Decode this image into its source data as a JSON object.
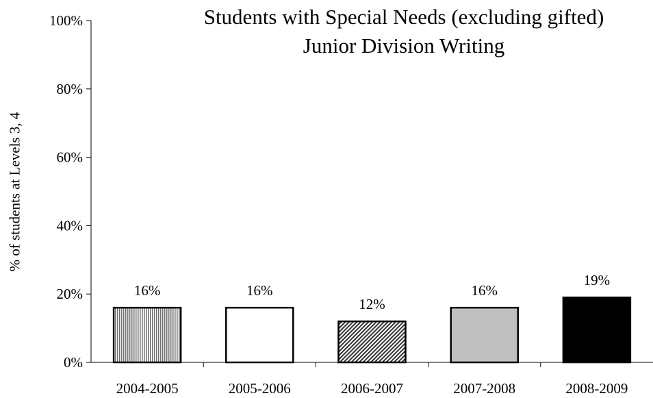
{
  "chart_data": {
    "type": "bar",
    "title": "Students with Special Needs (excluding gifted)",
    "subtitle": "Junior Division Writing",
    "xlabel": "",
    "ylabel": "% of students at Levels 3, 4",
    "categories": [
      "2004-2005",
      "2005-2006",
      "2006-2007",
      "2007-2008",
      "2008-2009"
    ],
    "values": [
      16,
      16,
      12,
      16,
      19
    ],
    "data_labels": [
      "16%",
      "16%",
      "12%",
      "16%",
      "19%"
    ],
    "bar_fills": [
      "vertical-stripes",
      "white",
      "diagonal-hatch",
      "light-gray",
      "black"
    ],
    "ylim": [
      0,
      100
    ],
    "yticks": [
      0,
      20,
      40,
      60,
      80,
      100
    ],
    "ytick_labels": [
      "0%",
      "20%",
      "40%",
      "60%",
      "80%",
      "100%"
    ],
    "grid": false,
    "legend": "none",
    "colors": {
      "axis": "#000000",
      "bar_outline": "#000000",
      "gray_fill": "#c0c0c0",
      "stripe": "#6e6e6e",
      "hatch": "#333333"
    }
  }
}
